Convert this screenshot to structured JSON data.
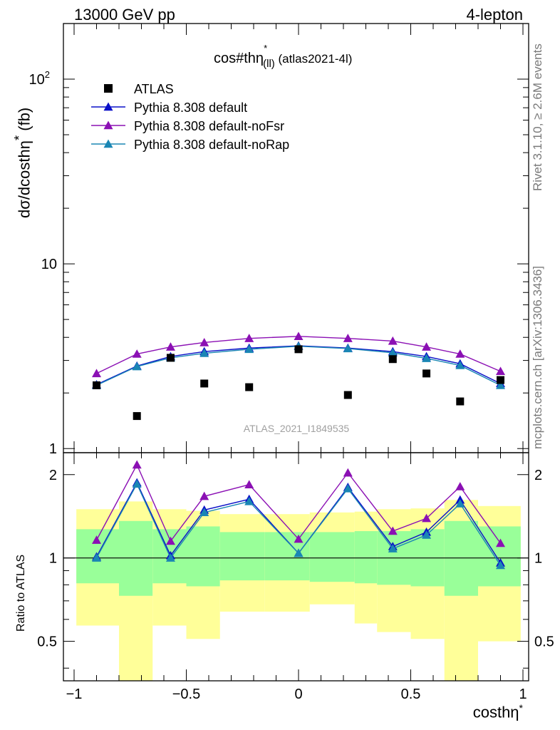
{
  "header": {
    "left": "13000 GeV pp",
    "right": "4-lepton"
  },
  "side": {
    "top": "Rivet 3.1.10, ≥ 2.6M events",
    "bottom": "mcplots.cern.ch [arXiv:1306.3436]"
  },
  "chart_data": [
    {
      "type": "scatter",
      "title": "cos#thη",
      "title_sup": "*",
      "title_sub": "(ll)",
      "title_suffix": "(atlas2021-4l)",
      "watermark": "ATLAS_2021_I1849535",
      "ylabel": "dσ/dcosthη",
      "ylabel_sup": "*",
      "ylabel_unit": "(fb)",
      "yscale": "log",
      "ylim": [
        0.95,
        200
      ],
      "xlim": [
        -1.0,
        1.0
      ],
      "yticks": [
        {
          "value": 1,
          "label": "1"
        },
        {
          "value": 10,
          "label": "10"
        },
        {
          "value": 100,
          "label": "10",
          "sup": "2"
        }
      ],
      "legend_position": "top-left",
      "data": {
        "name": "ATLAS",
        "color": "#000000",
        "x": [
          -0.9,
          -0.72,
          -0.57,
          -0.42,
          -0.22,
          0.0,
          0.22,
          0.42,
          0.57,
          0.72,
          0.9
        ],
        "y": [
          2.2,
          1.5,
          3.1,
          2.25,
          2.15,
          3.45,
          1.95,
          3.05,
          2.55,
          1.8,
          2.35
        ]
      },
      "series": [
        {
          "name": "Pythia 8.308 default",
          "color": "#0a10c8",
          "x": [
            -0.9,
            -0.72,
            -0.57,
            -0.42,
            -0.22,
            0.0,
            0.22,
            0.42,
            0.57,
            0.72,
            0.9
          ],
          "y": [
            2.22,
            2.8,
            3.15,
            3.35,
            3.5,
            3.6,
            3.5,
            3.35,
            3.15,
            2.88,
            2.25
          ]
        },
        {
          "name": "Pythia 8.308 default-noFsr",
          "color": "#8b10b4",
          "x": [
            -0.9,
            -0.72,
            -0.57,
            -0.42,
            -0.22,
            0.0,
            0.22,
            0.42,
            0.57,
            0.72,
            0.9
          ],
          "y": [
            2.55,
            3.25,
            3.55,
            3.75,
            3.95,
            4.05,
            3.95,
            3.82,
            3.55,
            3.25,
            2.62
          ]
        },
        {
          "name": "Pythia 8.308 default-noRap",
          "color": "#1a86b4",
          "x": [
            -0.9,
            -0.72,
            -0.57,
            -0.42,
            -0.22,
            0.0,
            0.22,
            0.42,
            0.57,
            0.72,
            0.9
          ],
          "y": [
            2.2,
            2.78,
            3.1,
            3.28,
            3.45,
            3.58,
            3.48,
            3.3,
            3.08,
            2.82,
            2.2
          ]
        }
      ]
    },
    {
      "type": "line",
      "ylabel": "Ratio to ATLAS",
      "xlabel": "costhη",
      "xlabel_sup": "*",
      "yscale": "log",
      "ylim": [
        0.36,
        2.4
      ],
      "xlim": [
        -1.0,
        1.0
      ],
      "xticks": [
        {
          "value": -1.0,
          "label": "−1"
        },
        {
          "value": -0.5,
          "label": "−0.5"
        },
        {
          "value": 0.0,
          "label": "0"
        },
        {
          "value": 0.5,
          "label": "0.5"
        },
        {
          "value": 1.0,
          "label": "1"
        }
      ],
      "yticks": [
        {
          "value": 0.5,
          "label": "0.5"
        },
        {
          "value": 1,
          "label": "1"
        },
        {
          "value": 2,
          "label": "2"
        }
      ],
      "bands": {
        "edges": [
          -0.99,
          -0.8,
          -0.65,
          -0.5,
          -0.35,
          -0.15,
          0.05,
          0.25,
          0.35,
          0.5,
          0.65,
          0.8,
          0.99
        ],
        "inner": {
          "color": "#99ff99",
          "lo": [
            0.81,
            0.73,
            0.81,
            0.79,
            0.83,
            0.83,
            0.82,
            0.81,
            0.8,
            0.79,
            0.73,
            0.79
          ],
          "hi": [
            1.27,
            1.36,
            1.27,
            1.3,
            1.24,
            1.24,
            1.24,
            1.25,
            1.25,
            1.27,
            1.36,
            1.3
          ]
        },
        "outer": {
          "color": "#ffff99",
          "lo": [
            0.57,
            0.3,
            0.57,
            0.51,
            0.64,
            0.64,
            0.68,
            0.58,
            0.54,
            0.51,
            0.3,
            0.5
          ],
          "hi": [
            1.5,
            1.6,
            1.5,
            1.48,
            1.44,
            1.44,
            1.46,
            1.47,
            1.5,
            1.51,
            1.62,
            1.54
          ]
        }
      },
      "reference_line": 1,
      "series": [
        {
          "name": "Pythia 8.308 default",
          "color": "#0a10c8",
          "x": [
            -0.9,
            -0.72,
            -0.57,
            -0.42,
            -0.22,
            0.0,
            0.22,
            0.42,
            0.57,
            0.72,
            0.9
          ],
          "y": [
            1.01,
            1.87,
            1.02,
            1.49,
            1.63,
            1.04,
            1.8,
            1.1,
            1.24,
            1.62,
            0.96
          ]
        },
        {
          "name": "Pythia 8.308 default-noFsr",
          "color": "#8b10b4",
          "x": [
            -0.9,
            -0.72,
            -0.57,
            -0.42,
            -0.22,
            0.0,
            0.22,
            0.42,
            0.57,
            0.72,
            0.9
          ],
          "y": [
            1.16,
            2.17,
            1.15,
            1.67,
            1.84,
            1.17,
            2.03,
            1.25,
            1.39,
            1.81,
            1.13
          ]
        },
        {
          "name": "Pythia 8.308 default-noRap",
          "color": "#1a86b4",
          "x": [
            -0.9,
            -0.72,
            -0.57,
            -0.42,
            -0.22,
            0.0,
            0.22,
            0.42,
            0.57,
            0.72,
            0.9
          ],
          "y": [
            1.0,
            1.85,
            1.0,
            1.46,
            1.6,
            1.04,
            1.78,
            1.08,
            1.21,
            1.57,
            0.94
          ]
        }
      ]
    }
  ]
}
